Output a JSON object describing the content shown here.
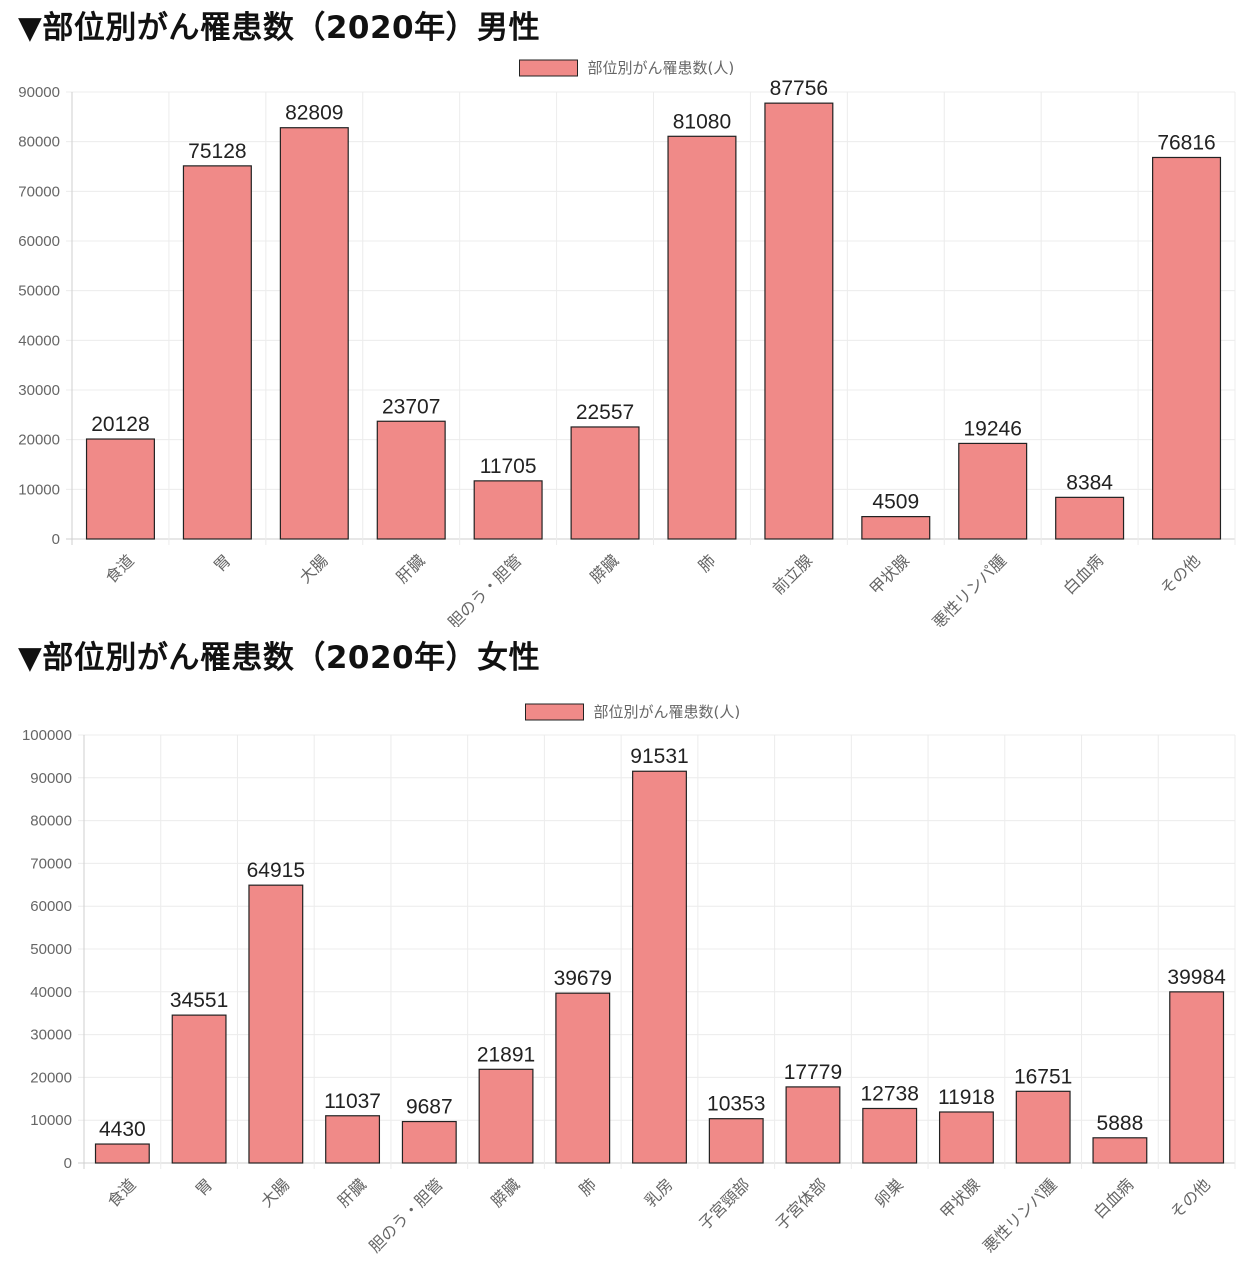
{
  "charts": {
    "male": {
      "heading": "▼部位別がん罹患数（2020年）男性"
    },
    "female": {
      "heading": "▼部位別がん罹患数（2020年）女性"
    }
  },
  "colors": {
    "bar_fill": "#f08a88",
    "bar_stroke": "#222222"
  },
  "chart_data": [
    {
      "type": "bar",
      "title": "▼部位別がん罹患数（2020年）男性",
      "categories": [
        "食道",
        "胃",
        "大腸",
        "肝臓",
        "胆のう・胆管",
        "膵臓",
        "肺",
        "前立腺",
        "甲状腺",
        "悪性リンパ腫",
        "白血病",
        "その他"
      ],
      "series": [
        {
          "name": "部位別がん罹患数(人)",
          "values": [
            20128,
            75128,
            82809,
            23707,
            11705,
            22557,
            81080,
            87756,
            4509,
            19246,
            8384,
            76816
          ]
        }
      ],
      "ylim": [
        0,
        90000
      ],
      "ytick_step": 10000,
      "grid": true,
      "legend": "top-center",
      "data_labels": true,
      "x_tick_rotation": -45
    },
    {
      "type": "bar",
      "title": "▼部位別がん罹患数（2020年）女性",
      "categories": [
        "食道",
        "胃",
        "大腸",
        "肝臓",
        "胆のう・胆管",
        "膵臓",
        "肺",
        "乳房",
        "子宮頸部",
        "子宮体部",
        "卵巣",
        "甲状腺",
        "悪性リンパ腫",
        "白血病",
        "その他"
      ],
      "series": [
        {
          "name": "部位別がん罹患数(人)",
          "values": [
            4430,
            34551,
            64915,
            11037,
            9687,
            21891,
            39679,
            91531,
            10353,
            17779,
            12738,
            11918,
            16751,
            5888,
            39984
          ]
        }
      ],
      "ylim": [
        0,
        100000
      ],
      "ytick_step": 10000,
      "grid": true,
      "legend": "top-center",
      "data_labels": true,
      "x_tick_rotation": -45
    }
  ]
}
